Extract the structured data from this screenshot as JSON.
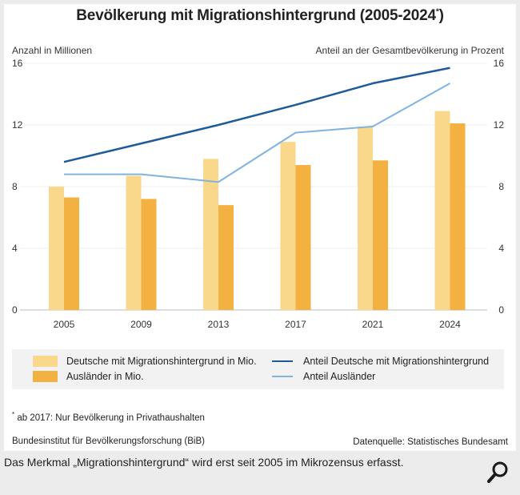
{
  "caption": "Das Merkmal „Migrationshintergrund“ wird erst seit 2005 im Mikrozensus erfasst.",
  "zoom_icon": "magnifier-icon",
  "footnote": {
    "marker": "*",
    "text": "ab 2017: Nur Bevölkerung in Privathaushalten"
  },
  "source_left": "Bundesinstitut für Bevölkerungsforschung (BiB)",
  "source_right": "Datenquelle: Statistisches Bundesamt",
  "colors": {
    "deutsche_bar": "#f9d78b",
    "auslaender_bar": "#f3b142",
    "anteil_deutsche_line": "#1f5b98",
    "anteil_auslaender_line": "#80b3df"
  },
  "chart_data": {
    "type": "bar",
    "title": "Bevölkerung mit Migrationshintergrund (2005-2024",
    "title_marker": "*",
    "title_suffix": ")",
    "ylabel": "Anzahl in Millionen",
    "y2label": "Anteil an der Gesamtbevölkerung in Prozent",
    "ylim": [
      0,
      16
    ],
    "y2lim": [
      0,
      16
    ],
    "yticks": [
      "0",
      "4",
      "8",
      "12",
      "16"
    ],
    "y2ticks": [
      "0",
      "4",
      "8",
      "12",
      "16"
    ],
    "grid": true,
    "legend_position": "bottom",
    "categories": [
      "2005",
      "2009",
      "2013",
      "2017",
      "2021",
      "2024"
    ],
    "series": [
      {
        "name": "Deutsche mit Migrationshintergrund in Mio.",
        "type": "bar",
        "axis": "left",
        "values": [
          8.0,
          8.7,
          9.8,
          10.9,
          11.9,
          12.9
        ]
      },
      {
        "name": "Ausländer in Mio.",
        "type": "bar",
        "axis": "left",
        "values": [
          7.3,
          7.2,
          6.8,
          9.4,
          9.7,
          12.1
        ]
      },
      {
        "name": "Anteil Deutsche mit Migrationshintergrund",
        "type": "line",
        "axis": "right",
        "values": [
          9.6,
          10.8,
          12.0,
          13.3,
          14.7,
          15.7
        ]
      },
      {
        "name": "Anteil Ausländer",
        "type": "line",
        "axis": "right",
        "values": [
          8.8,
          8.8,
          8.3,
          11.5,
          11.9,
          14.7
        ]
      }
    ]
  }
}
